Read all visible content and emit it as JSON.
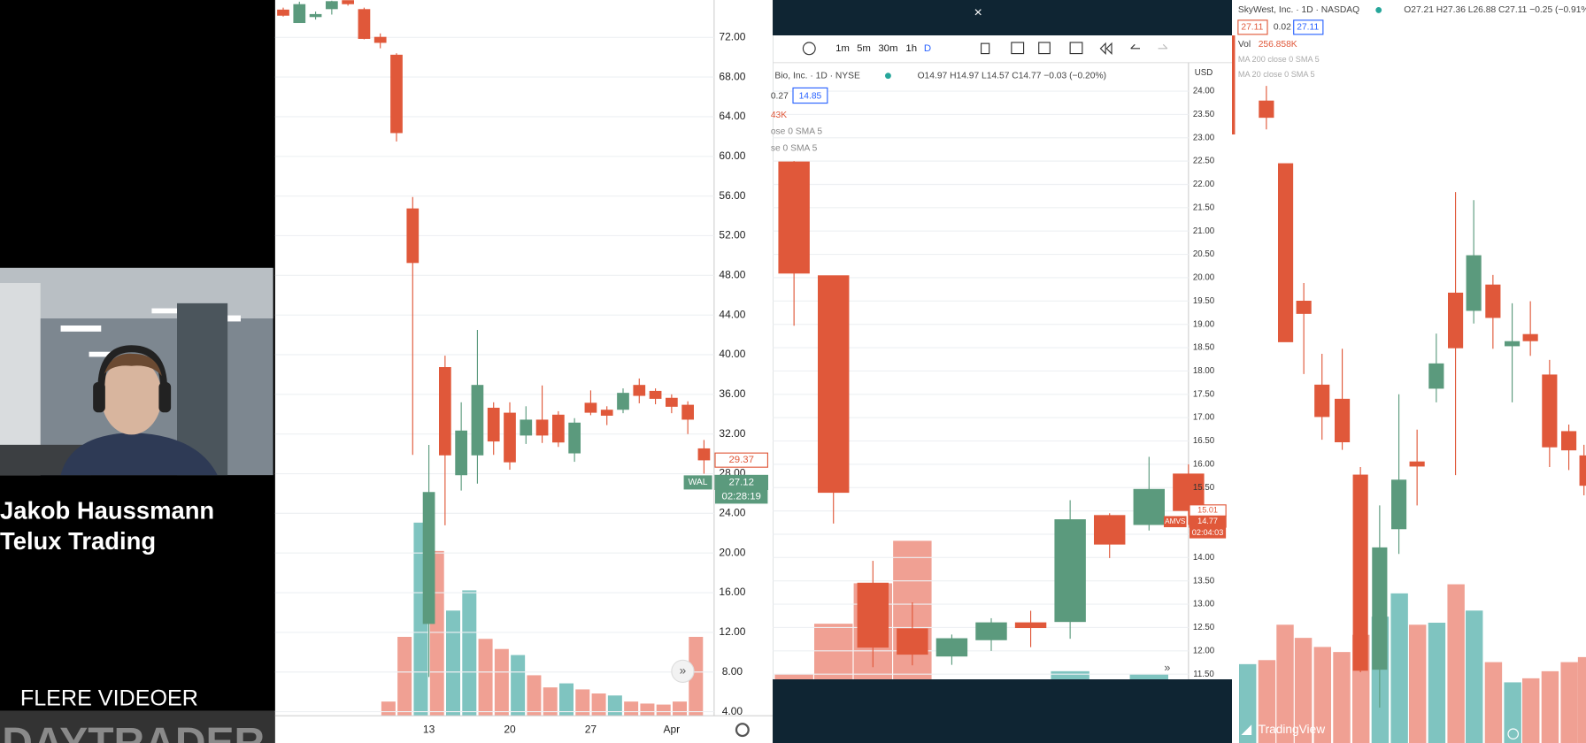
{
  "presenter": {
    "name": "Jakob Haussmann",
    "company": "Telux Trading",
    "more_videos": "FLERE VIDEOER",
    "watermark": "DAYTRADER.DK"
  },
  "middle_panel": {
    "toolbar": [
      "1m",
      "5m",
      "30m",
      "1h",
      "D"
    ],
    "symbol_line": "Bio, Inc. · 1D · NYSE",
    "ohlc_line": "O14.97 H14.97 L14.57 C14.77 −0.03 (−0.20%)",
    "spread": "0.27",
    "ask": "14.85",
    "volume": "43K",
    "ma1": "ose 0 SMA 5",
    "ma2": "se 0 SMA 5",
    "currency": "USD"
  },
  "right_panel": {
    "symbol_line": "SkyWest, Inc. · 1D · NASDAQ",
    "ohlc_line": "O27.21 H27.36 L26.88 C27.11 −0.25 (−0.91%)",
    "bid": "27.11",
    "spread": "0.02",
    "ask": "27.11",
    "volume_label": "Vol",
    "volume": "256.858K",
    "ma1": "MA 200 close 0 SMA 5",
    "ma2": "MA 20 close 0 SMA 5",
    "brand": "TradingView"
  },
  "chart_data": [
    {
      "type": "candlestick",
      "up_color": "#5b9a7d",
      "down_color": "#e0583a",
      "grid": true,
      "categories": [
        null,
        null,
        null,
        null,
        null,
        null,
        null,
        null,
        null,
        "13",
        null,
        null,
        null,
        null,
        "20",
        null,
        null,
        null,
        null,
        "27",
        null,
        null,
        null,
        null,
        "Apr",
        null,
        null
      ],
      "open": [
        74.75,
        73.5,
        74.1,
        74.9,
        75.7,
        74.8,
        72.0,
        70.2,
        54.7,
        12.9,
        38.7,
        27.9,
        29.9,
        34.6,
        34.1,
        31.9,
        33.4,
        33.9,
        30.1,
        35.1,
        34.4,
        34.5,
        36.9,
        36.3,
        35.6,
        34.9,
        30.5
      ],
      "high": [
        75.0,
        75.6,
        74.6,
        75.7,
        75.7,
        75.0,
        72.4,
        70.4,
        55.9,
        30.9,
        39.9,
        35.2,
        42.5,
        35.2,
        35.2,
        34.8,
        36.9,
        34.3,
        33.6,
        36.4,
        34.8,
        36.6,
        37.6,
        36.6,
        36.0,
        35.3,
        31.4
      ],
      "low": [
        74.1,
        73.5,
        73.8,
        74.3,
        75.2,
        71.8,
        70.9,
        61.5,
        29.9,
        7.5,
        22.8,
        26.3,
        27.0,
        29.9,
        28.4,
        31.0,
        31.1,
        30.7,
        29.2,
        33.9,
        32.9,
        34.1,
        35.1,
        35.0,
        34.1,
        32.0,
        28.0
      ],
      "close": [
        74.24,
        75.3,
        74.3,
        75.6,
        75.4,
        71.9,
        71.5,
        62.4,
        49.3,
        26.1,
        29.9,
        32.3,
        36.9,
        31.3,
        29.2,
        33.4,
        31.9,
        31.2,
        33.1,
        34.2,
        33.9,
        36.1,
        35.9,
        35.6,
        34.8,
        33.5,
        29.4
      ],
      "ylim": [
        3.9,
        75.77
      ],
      "yticks": [
        {
          "value": 4,
          "label": "4.00"
        },
        {
          "value": 8,
          "label": "8.00"
        },
        {
          "value": 12,
          "label": "12.00"
        },
        {
          "value": 16,
          "label": "16.00"
        },
        {
          "value": 20,
          "label": "20.00"
        },
        {
          "value": 24,
          "label": "24.00"
        },
        {
          "value": 28,
          "label": "28.00"
        },
        {
          "value": 32,
          "label": "32.00"
        },
        {
          "value": 36,
          "label": "36.00"
        },
        {
          "value": 40,
          "label": "40.00"
        },
        {
          "value": 44,
          "label": "44.00"
        },
        {
          "value": 48,
          "label": "48.00"
        },
        {
          "value": 52,
          "label": "52.00"
        },
        {
          "value": 56,
          "label": "56.00"
        },
        {
          "value": 60,
          "label": "60.00"
        },
        {
          "value": 64,
          "label": "64.00"
        },
        {
          "value": 68,
          "label": "68.00"
        },
        {
          "value": 72,
          "label": "72.00"
        }
      ],
      "price_tags": [
        {
          "value": 29.37,
          "label": "29.37",
          "color": "#e0583a"
        },
        {
          "value": 27.12,
          "label": "27.12",
          "color": "#5b9a7d"
        }
      ],
      "symbol": "WAL",
      "countdown": "02:28:19"
    },
    {
      "type": "candlestick",
      "up_color": "#5b9a7d",
      "down_color": "#e0583a",
      "grid": true,
      "open": [
        22.48,
        20.04,
        13.45,
        12.47,
        11.89,
        12.24,
        12.6,
        12.63,
        14.9,
        14.71,
        15.79
      ],
      "high": [
        22.5,
        20.04,
        13.93,
        13.04,
        12.35,
        12.7,
        12.86,
        15.23,
        14.95,
        16.16,
        16.0
      ],
      "low": [
        18.97,
        14.73,
        11.65,
        11.69,
        11.7,
        12.0,
        12.08,
        12.26,
        13.99,
        14.58,
        14.7
      ],
      "close": [
        20.1,
        15.4,
        12.08,
        11.93,
        12.26,
        12.6,
        12.5,
        14.81,
        14.29,
        15.46,
        15.01
      ],
      "ylim": [
        11.39,
        24.61
      ],
      "yticks": [
        {
          "value": 11.5,
          "label": "11.50"
        },
        {
          "value": 12,
          "label": "12.00"
        },
        {
          "value": 12.5,
          "label": "12.50"
        },
        {
          "value": 13,
          "label": "13.00"
        },
        {
          "value": 13.5,
          "label": "13.50"
        },
        {
          "value": 14,
          "label": "14.00"
        },
        {
          "value": 14.5,
          "label": "14.50"
        },
        {
          "value": 15,
          "label": "15.00"
        },
        {
          "value": 15.5,
          "label": "15.50"
        },
        {
          "value": 16,
          "label": "16.00"
        },
        {
          "value": 16.5,
          "label": "16.50"
        },
        {
          "value": 17,
          "label": "17.00"
        },
        {
          "value": 17.5,
          "label": "17.50"
        },
        {
          "value": 18,
          "label": "18.00"
        },
        {
          "value": 18.5,
          "label": "18.50"
        },
        {
          "value": 19,
          "label": "19.00"
        },
        {
          "value": 19.5,
          "label": "19.50"
        },
        {
          "value": 20,
          "label": "20.00"
        },
        {
          "value": 20.5,
          "label": "20.50"
        },
        {
          "value": 21,
          "label": "21.00"
        },
        {
          "value": 21.5,
          "label": "21.50"
        },
        {
          "value": 22,
          "label": "22.00"
        },
        {
          "value": 22.5,
          "label": "22.50"
        },
        {
          "value": 23,
          "label": "23.00"
        },
        {
          "value": 23.5,
          "label": "23.50"
        },
        {
          "value": 24,
          "label": "24.00"
        }
      ],
      "price_tags": [
        {
          "value": 15.01,
          "label": "15.01",
          "color": "#e0583a"
        },
        {
          "value": 14.77,
          "label": "14.77",
          "color": "#e0583a"
        }
      ],
      "symbol": "AMVS",
      "countdown": "02:04:03"
    }
  ]
}
